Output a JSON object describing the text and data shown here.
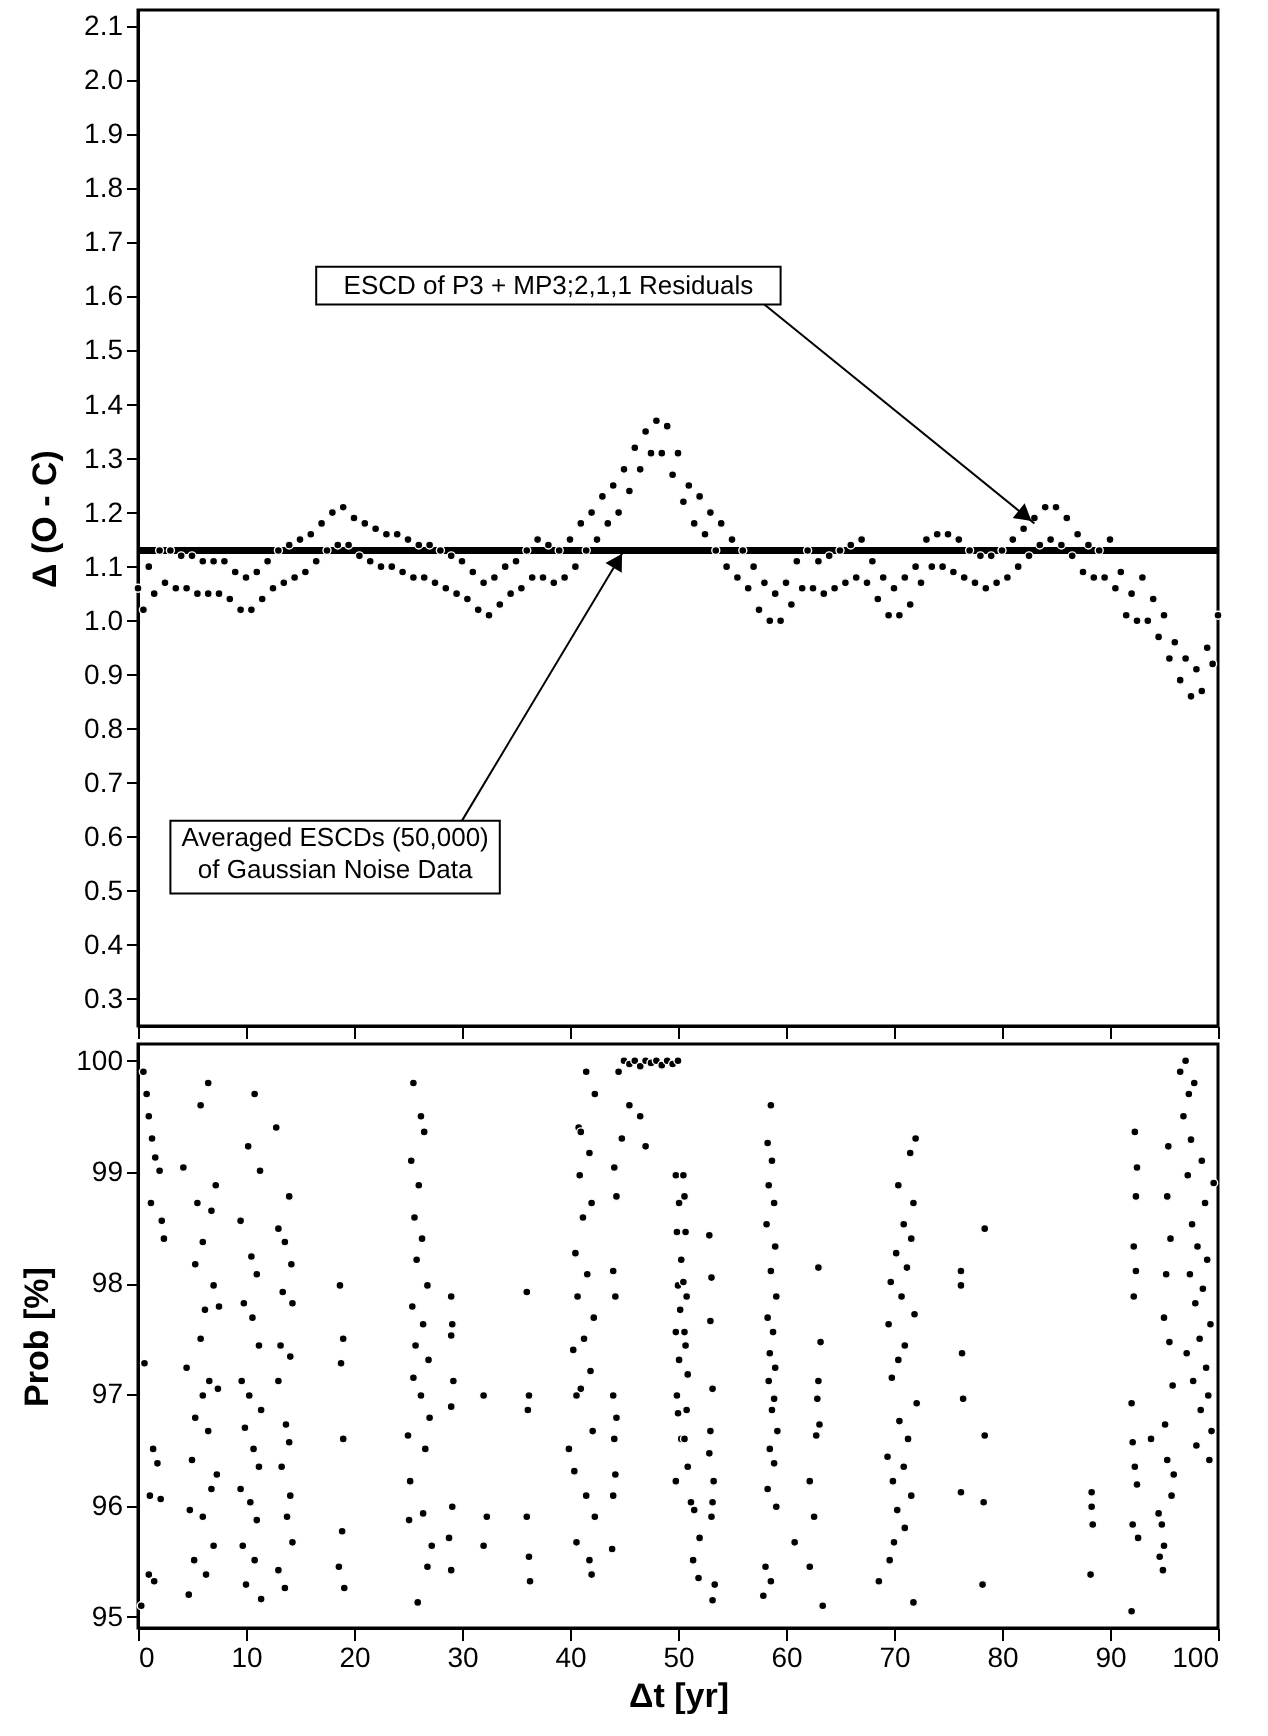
{
  "chart_data": [
    {
      "type": "scatter",
      "ylabel": "Δ (O - C)",
      "xlim": [
        0,
        100
      ],
      "xticks": [
        0,
        10,
        20,
        30,
        40,
        50,
        60,
        70,
        80,
        90,
        100
      ],
      "ylim": [
        0.25,
        2.13
      ],
      "yticks": [
        0.3,
        0.4,
        0.5,
        0.6,
        0.7,
        0.8,
        0.9,
        {
          "value": 1,
          "label": "1.0"
        },
        1.1,
        1.2,
        1.3,
        1.4,
        1.5,
        1.6,
        1.7,
        1.8,
        1.9,
        {
          "value": 2,
          "label": "2.0"
        },
        2.1
      ],
      "tick_labels": "y",
      "marker": "circle",
      "series": [
        {
          "color": "#000000",
          "x": [
            0,
            0.5,
            1,
            1.5,
            2,
            2.5,
            3,
            3.5,
            4,
            4.5,
            5,
            5.5,
            6,
            6.5,
            7,
            7.5,
            8,
            8.5,
            9,
            9.5,
            10,
            10.5,
            11,
            11.5,
            12,
            12.5,
            13,
            13.5,
            14,
            14.5,
            15,
            15.5,
            16,
            16.5,
            17,
            17.5,
            18,
            18.5,
            19,
            19.5,
            20,
            20.5,
            21,
            21.5,
            22,
            22.5,
            23,
            23.5,
            24,
            24.5,
            25,
            25.5,
            26,
            26.5,
            27,
            27.5,
            28,
            28.5,
            29,
            29.5,
            30,
            30.5,
            31,
            31.5,
            32,
            32.5,
            33,
            33.5,
            34,
            34.5,
            35,
            35.5,
            36,
            36.5,
            37,
            37.5,
            38,
            38.5,
            39,
            39.5,
            40,
            40.5,
            41,
            41.5,
            42,
            42.5,
            43,
            43.5,
            44,
            44.5,
            45,
            45.5,
            46,
            46.5,
            47,
            47.5,
            48,
            48.5,
            49,
            49.5,
            50,
            50.5,
            51,
            51.5,
            52,
            52.5,
            53,
            53.5,
            54,
            54.5,
            55,
            55.5,
            56,
            56.5,
            57,
            57.5,
            58,
            58.5,
            59,
            59.5,
            60,
            60.5,
            61,
            61.5,
            62,
            62.5,
            63,
            63.5,
            64,
            64.5,
            65,
            65.5,
            66,
            66.5,
            67,
            67.5,
            68,
            68.5,
            69,
            69.5,
            70,
            70.5,
            71,
            71.5,
            72,
            72.5,
            73,
            73.5,
            74,
            74.5,
            75,
            75.5,
            76,
            76.5,
            77,
            77.5,
            78,
            78.5,
            79,
            79.5,
            80,
            80.5,
            81,
            81.5,
            82,
            82.5,
            83,
            83.5,
            84,
            84.5,
            85,
            85.5,
            86,
            86.5,
            87,
            87.5,
            88,
            88.5,
            89,
            89.5,
            90,
            90.5,
            91,
            91.5,
            92,
            92.5,
            93,
            93.5,
            94,
            94.5,
            95,
            95.5,
            96,
            96.5,
            97,
            97.5,
            98,
            98.5,
            99,
            99.5,
            100
          ],
          "values": [
            1.06,
            1.02,
            1.1,
            1.05,
            1.13,
            1.07,
            1.13,
            1.06,
            1.12,
            1.06,
            1.12,
            1.05,
            1.11,
            1.05,
            1.11,
            1.05,
            1.11,
            1.04,
            1.09,
            1.02,
            1.08,
            1.02,
            1.09,
            1.04,
            1.11,
            1.06,
            1.13,
            1.07,
            1.14,
            1.08,
            1.15,
            1.09,
            1.16,
            1.11,
            1.18,
            1.13,
            1.2,
            1.14,
            1.21,
            1.14,
            1.19,
            1.12,
            1.18,
            1.11,
            1.17,
            1.1,
            1.16,
            1.1,
            1.16,
            1.09,
            1.15,
            1.08,
            1.14,
            1.08,
            1.14,
            1.07,
            1.13,
            1.06,
            1.12,
            1.05,
            1.11,
            1.04,
            1.09,
            1.02,
            1.07,
            1.01,
            1.08,
            1.03,
            1.1,
            1.05,
            1.11,
            1.06,
            1.13,
            1.08,
            1.15,
            1.08,
            1.14,
            1.07,
            1.13,
            1.08,
            1.15,
            1.1,
            1.18,
            1.13,
            1.2,
            1.15,
            1.23,
            1.18,
            1.25,
            1.2,
            1.28,
            1.24,
            1.32,
            1.28,
            1.35,
            1.31,
            1.37,
            1.31,
            1.36,
            1.27,
            1.31,
            1.22,
            1.25,
            1.18,
            1.23,
            1.16,
            1.2,
            1.13,
            1.18,
            1.1,
            1.15,
            1.08,
            1.13,
            1.06,
            1.1,
            1.02,
            1.07,
            1.0,
            1.05,
            1.0,
            1.07,
            1.03,
            1.11,
            1.06,
            1.13,
            1.06,
            1.11,
            1.05,
            1.12,
            1.06,
            1.13,
            1.07,
            1.14,
            1.08,
            1.15,
            1.07,
            1.11,
            1.04,
            1.08,
            1.01,
            1.06,
            1.01,
            1.08,
            1.03,
            1.1,
            1.07,
            1.15,
            1.1,
            1.16,
            1.1,
            1.16,
            1.09,
            1.15,
            1.08,
            1.13,
            1.07,
            1.12,
            1.06,
            1.12,
            1.07,
            1.13,
            1.08,
            1.15,
            1.1,
            1.17,
            1.12,
            1.19,
            1.14,
            1.21,
            1.15,
            1.21,
            1.14,
            1.19,
            1.12,
            1.16,
            1.09,
            1.14,
            1.08,
            1.13,
            1.08,
            1.15,
            1.06,
            1.09,
            1.01,
            1.05,
            1.0,
            1.08,
            1.0,
            1.04,
            0.97,
            1.01,
            0.93,
            0.96,
            0.89,
            0.93,
            0.86,
            0.91,
            0.87,
            0.95,
            0.92,
            1.01
          ]
        }
      ],
      "ref_lines": [
        {
          "axis": "y",
          "value": 1.13,
          "color": "#000000"
        }
      ],
      "annotations": [
        {
          "text": "ESCD of P3 + MP3;2,1,1 Residuals",
          "x": 83,
          "y": 1.18
        },
        {
          "text": "Averaged ESCDs (50,000)\nof Gaussian Noise Data",
          "x": 45,
          "y": 1.13
        }
      ]
    },
    {
      "type": "scatter",
      "xlabel": "Δt [yr]",
      "ylabel": "Prob [%]",
      "xlim": [
        0,
        100
      ],
      "xticks": [
        0,
        10,
        20,
        30,
        40,
        50,
        60,
        70,
        80,
        90,
        100
      ],
      "ylim": [
        94.9,
        100.15
      ],
      "yticks": [
        95,
        96,
        97,
        98,
        99,
        100
      ],
      "marker": "circle",
      "series": [
        {
          "color": "#000000",
          "x": [
            0.5,
            0.8,
            1.0,
            1.3,
            1.6,
            2.0,
            1.2,
            2.2,
            2.4,
            0.6,
            1.4,
            1.8,
            1.1,
            2.1,
            1.0,
            1.5,
            0.3,
            6.5,
            5.8,
            6.8,
            4.2,
            7.2,
            5.5,
            6.0,
            5.3,
            7.0,
            6.2,
            7.5,
            5.8,
            4.5,
            6.6,
            7.4,
            6.0,
            5.3,
            6.5,
            5.0,
            7.3,
            6.8,
            4.8,
            6.0,
            7.0,
            5.2,
            6.3,
            4.7,
            10.8,
            10.2,
            11.3,
            9.5,
            10.5,
            11.0,
            9.8,
            10.6,
            11.2,
            9.6,
            10.3,
            11.4,
            9.9,
            10.7,
            11.2,
            9.5,
            10.4,
            11.0,
            9.7,
            10.8,
            10.0,
            11.4,
            12.8,
            14.0,
            13.0,
            13.6,
            14.2,
            13.4,
            14.3,
            13.2,
            14.1,
            13.0,
            13.7,
            14.0,
            13.3,
            14.1,
            13.8,
            14.3,
            13.0,
            13.6,
            18.7,
            19.0,
            18.8,
            19.0,
            18.9,
            18.6,
            19.1,
            25.5,
            26.2,
            26.5,
            25.3,
            26.0,
            25.6,
            26.3,
            25.8,
            26.8,
            25.4,
            26.4,
            25.7,
            26.9,
            25.5,
            26.2,
            27.0,
            25.0,
            26.6,
            25.2,
            26.4,
            25.1,
            27.2,
            26.8,
            25.9,
            29.0,
            29.1,
            29.0,
            29.2,
            29.0,
            29.1,
            28.8,
            29.0,
            32.0,
            32.3,
            32.0,
            36.0,
            36.2,
            36.1,
            36.0,
            36.2,
            36.3,
            41.5,
            42.3,
            40.8,
            41.0,
            41.8,
            40.9,
            42.0,
            41.2,
            40.5,
            41.6,
            40.7,
            42.2,
            41.3,
            40.3,
            41.9,
            41.0,
            40.6,
            42.1,
            39.9,
            40.4,
            41.5,
            42.3,
            40.6,
            41.8,
            42.0,
            44.1,
            44.3,
            44.0,
            44.2,
            44.0,
            44.3,
            44.1,
            44.2,
            44.0,
            43.9,
            44.5,
            45,
            45.5,
            46,
            46.5,
            47,
            47.5,
            48,
            48.5,
            49,
            49.5,
            50,
            45.5,
            46.5,
            47,
            44.8,
            49.8,
            50.1,
            49.9,
            50.3,
            50.0,
            50.2,
            49.8,
            50.1,
            49.9,
            50.0,
            50.3,
            49.8,
            50.5,
            50.6,
            50.7,
            50.5,
            50.8,
            50.6,
            50.7,
            50.9,
            50.8,
            50.6,
            50.9,
            51.2,
            52.9,
            53.1,
            53.0,
            53.2,
            53.0,
            52.9,
            53.3,
            53.2,
            53.1,
            53.4,
            53.2,
            51.5,
            52.0,
            51.4,
            51.9,
            58.6,
            58.3,
            58.7,
            58.4,
            58.9,
            58.2,
            59.0,
            58.6,
            59.1,
            58.3,
            58.8,
            58.5,
            59.0,
            58.4,
            58.9,
            58.7,
            59.2,
            58.5,
            58.9,
            58.3,
            59.1,
            58.1,
            58.6,
            57.9,
            63.0,
            63.2,
            63.0,
            62.9,
            63.1,
            62.8,
            62.2,
            62.6,
            60.8,
            62.2,
            63.4,
            72.0,
            71.5,
            70.4,
            71.8,
            70.9,
            71.6,
            70.2,
            71.2,
            69.7,
            70.7,
            71.9,
            69.5,
            71.0,
            70.4,
            69.8,
            72.1,
            70.5,
            71.3,
            69.4,
            70.9,
            69.9,
            71.6,
            70.3,
            71.0,
            70.0,
            69.6,
            68.6,
            71.8,
            76.2,
            76.2,
            76.3,
            76.4,
            76.2,
            78.4,
            78.4,
            78.3,
            78.2,
            88.3,
            88.3,
            88.4,
            88.2,
            92.3,
            92.5,
            92.4,
            92.2,
            92.4,
            92.2,
            92.0,
            92.1,
            92.3,
            92.5,
            92.1,
            92.6,
            92.0,
            93.8,
            94.5,
            94.8,
            95.0,
            94.6,
            94.9,
            95.4,
            95.3,
            95.6,
            95.2,
            95.0,
            95.5,
            95.8,
            95.1,
            95.3,
            95.9,
            95.7,
            96.5,
            97,
            97.3,
            96.8,
            97.8,
            97.5,
            98.5,
            97.2,
            98.8,
            97.6,
            98.1,
            99.0,
            97.4,
            98.6,
            97.9,
            99.3,
            98.3,
            97.1,
            98.9,
            97.7,
            99.1,
            98.4,
            99.4,
            98.0,
            99.2,
            99.6
          ],
          "values": [
            99.9,
            99.7,
            99.5,
            99.3,
            99.13,
            99.01,
            98.72,
            98.56,
            98.4,
            97.28,
            96.51,
            96.38,
            96.09,
            96.06,
            95.38,
            95.32,
            95.1,
            99.8,
            99.6,
            98.65,
            99.04,
            98.88,
            98.72,
            98.37,
            98.17,
            97.98,
            97.76,
            97.79,
            97.5,
            97.24,
            97.12,
            97.05,
            96.99,
            96.79,
            96.67,
            96.41,
            96.28,
            96.15,
            95.96,
            95.9,
            95.64,
            95.51,
            95.38,
            95.2,
            99.7,
            99.23,
            99.01,
            98.56,
            98.24,
            98.08,
            97.82,
            97.69,
            97.44,
            97.12,
            96.99,
            96.86,
            96.7,
            96.51,
            96.35,
            96.15,
            96.03,
            95.87,
            95.64,
            95.51,
            95.29,
            95.16,
            99.4,
            98.78,
            98.49,
            98.37,
            98.17,
            97.92,
            97.82,
            97.44,
            97.34,
            97.12,
            96.73,
            96.57,
            96.35,
            96.09,
            95.9,
            95.67,
            95.42,
            95.26,
            97.98,
            97.5,
            97.28,
            96.6,
            95.77,
            95.45,
            95.26,
            99.8,
            99.5,
            99.36,
            99.1,
            98.88,
            98.59,
            98.4,
            98.21,
            97.98,
            97.79,
            97.63,
            97.44,
            97.31,
            97.15,
            96.99,
            96.79,
            96.63,
            96.51,
            96.22,
            95.93,
            95.87,
            95.64,
            95.45,
            95.13,
            97.88,
            97.63,
            97.53,
            97.12,
            96.89,
            95.99,
            95.71,
            95.42,
            96.99,
            95.9,
            95.64,
            97.92,
            96.99,
            96.86,
            95.9,
            95.54,
            95.32,
            99.9,
            99.7,
            99.4,
            99.36,
            99.17,
            98.97,
            98.72,
            98.59,
            98.27,
            98.08,
            97.88,
            97.69,
            97.5,
            97.4,
            97.21,
            97.05,
            96.99,
            96.67,
            96.51,
            96.31,
            96.09,
            95.9,
            95.67,
            95.51,
            95.38,
            99.04,
            98.78,
            98.11,
            97.88,
            96.99,
            96.79,
            96.6,
            96.28,
            96.09,
            95.61,
            99.9,
            100,
            99.97,
            100,
            99.95,
            100,
            99.98,
            100,
            99.96,
            100,
            99.97,
            100,
            99.6,
            99.5,
            99.23,
            99.3,
            98.97,
            98.72,
            98.46,
            98.21,
            97.98,
            97.76,
            97.56,
            97.31,
            96.99,
            96.83,
            96.6,
            96.22,
            98.97,
            98.78,
            98.46,
            98.01,
            97.88,
            97.56,
            97.44,
            97.18,
            96.86,
            96.6,
            96.35,
            96.03,
            98.43,
            98.05,
            97.66,
            97.05,
            96.67,
            96.47,
            96.22,
            96.03,
            95.9,
            95.29,
            95.15,
            95.96,
            95.71,
            95.51,
            95.35,
            99.6,
            99.26,
            99.1,
            98.88,
            98.72,
            98.53,
            98.33,
            98.11,
            97.88,
            97.69,
            97.56,
            97.37,
            97.24,
            97.12,
            96.96,
            96.86,
            96.67,
            96.51,
            96.38,
            96.15,
            95.99,
            95.45,
            95.32,
            95.19,
            98.14,
            97.47,
            97.12,
            96.96,
            96.73,
            96.63,
            96.22,
            95.9,
            95.67,
            95.45,
            95.1,
            99.3,
            99.17,
            98.88,
            98.72,
            98.53,
            98.4,
            98.27,
            98.14,
            98.01,
            97.88,
            97.72,
            97.63,
            97.44,
            97.31,
            97.15,
            96.92,
            96.76,
            96.6,
            96.44,
            96.35,
            96.22,
            96.09,
            95.96,
            95.8,
            95.67,
            95.51,
            95.32,
            95.13,
            98.11,
            97.98,
            97.37,
            96.96,
            96.12,
            98.49,
            96.63,
            96.03,
            95.29,
            96.12,
            95.99,
            95.83,
            95.38,
            99.36,
            99.04,
            98.78,
            98.33,
            98.11,
            97.88,
            96.92,
            96.57,
            96.35,
            96.19,
            95.83,
            95.71,
            95.05,
            96.6,
            95.93,
            95.83,
            95.64,
            95.54,
            95.42,
            99.23,
            98.78,
            98.4,
            98.08,
            97.69,
            97.47,
            97.08,
            96.73,
            96.41,
            96.28,
            96.09,
            99.9,
            100,
            99.7,
            99.5,
            99.8,
            99.29,
            99.1,
            98.97,
            98.72,
            98.53,
            98.33,
            98.21,
            98.08,
            97.95,
            97.82,
            97.63,
            97.5,
            97.37,
            97.24,
            97.12,
            96.99,
            96.86,
            96.67,
            96.54,
            96.41,
            98.9
          ]
        }
      ]
    }
  ]
}
